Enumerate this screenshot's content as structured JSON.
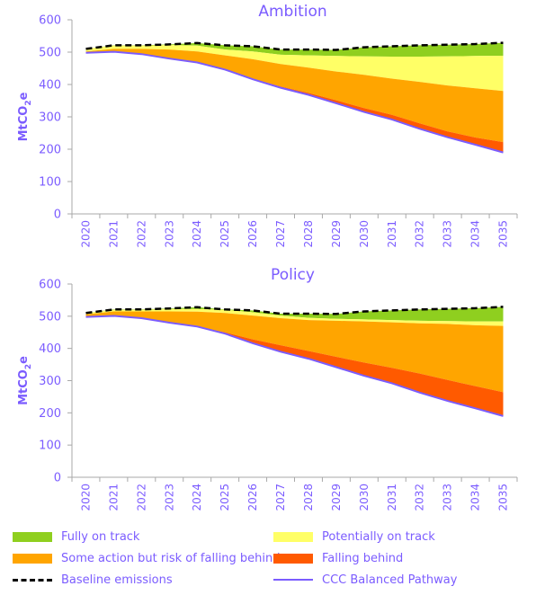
{
  "chart_data": [
    {
      "type": "area",
      "title": "Ambition",
      "ylabel": "MtCO2e",
      "ylim": [
        0,
        600
      ],
      "yticks": [
        0,
        100,
        200,
        300,
        400,
        500,
        600
      ],
      "x": [
        "2020",
        "2021",
        "2022",
        "2023",
        "2024",
        "2025",
        "2026",
        "2027",
        "2028",
        "2029",
        "2030",
        "2031",
        "2032",
        "2033",
        "2034",
        "2035"
      ],
      "baseline": [
        510,
        521,
        521,
        524,
        528,
        521,
        518,
        508,
        508,
        507,
        515,
        518,
        521,
        523,
        525,
        529
      ],
      "pathway": [
        498,
        501,
        494,
        480,
        468,
        446,
        416,
        390,
        368,
        342,
        315,
        292,
        263,
        237,
        214,
        190
      ],
      "boundaries": {
        "fully_on_track_bottom": [
          510,
          520,
          520,
          522,
          520,
          508,
          502,
          492,
          490,
          488,
          487,
          486,
          486,
          487,
          488,
          489
        ],
        "potentially_bottom": [
          502,
          510,
          510,
          508,
          502,
          490,
          478,
          463,
          452,
          440,
          430,
          418,
          408,
          397,
          388,
          380
        ],
        "some_action_bottom": [
          498,
          501,
          494,
          480,
          468,
          446,
          418,
          394,
          374,
          351,
          327,
          306,
          280,
          255,
          236,
          222
        ]
      },
      "series": [
        {
          "name": "Fully on track",
          "color": "#8fcf1f"
        },
        {
          "name": "Potentially on track",
          "color": "#ffff66"
        },
        {
          "name": "Some action but risk of falling behind",
          "color": "#ffa500"
        },
        {
          "name": "Falling behind",
          "color": "#ff5a00"
        }
      ]
    },
    {
      "type": "area",
      "title": "Policy",
      "ylabel": "MtCO2e",
      "ylim": [
        0,
        600
      ],
      "yticks": [
        0,
        100,
        200,
        300,
        400,
        500,
        600
      ],
      "x": [
        "2020",
        "2021",
        "2022",
        "2023",
        "2024",
        "2025",
        "2026",
        "2027",
        "2028",
        "2029",
        "2030",
        "2031",
        "2032",
        "2033",
        "2034",
        "2035"
      ],
      "baseline": [
        510,
        521,
        521,
        524,
        528,
        521,
        518,
        508,
        508,
        507,
        515,
        518,
        521,
        523,
        525,
        529
      ],
      "pathway": [
        498,
        501,
        494,
        480,
        468,
        446,
        416,
        390,
        368,
        342,
        315,
        292,
        263,
        237,
        214,
        190
      ],
      "boundaries": {
        "fully_on_track_bottom": [
          510,
          520,
          520,
          522,
          522,
          520,
          512,
          502,
          495,
          492,
          490,
          488,
          486,
          485,
          484,
          484
        ],
        "potentially_bottom": [
          506,
          515,
          515,
          515,
          514,
          510,
          502,
          494,
          488,
          486,
          484,
          481,
          478,
          476,
          472,
          470
        ],
        "some_action_bottom": [
          498,
          501,
          494,
          480,
          468,
          450,
          428,
          410,
          392,
          374,
          356,
          340,
          322,
          302,
          283,
          264
        ]
      },
      "series": [
        {
          "name": "Fully on track",
          "color": "#8fcf1f"
        },
        {
          "name": "Potentially on track",
          "color": "#ffff66"
        },
        {
          "name": "Some action but risk of falling behind",
          "color": "#ffa500"
        },
        {
          "name": "Falling behind",
          "color": "#ff5a00"
        }
      ]
    }
  ],
  "legend": {
    "fully_on_track": "Fully on track",
    "potentially_on_track": "Potentially on track",
    "some_action": "Some action but risk of falling behind",
    "falling_behind": "Falling behind",
    "baseline": "Baseline emissions",
    "pathway": "CCC Balanced Pathway"
  },
  "colors": {
    "fully": "#8fcf1f",
    "potentially": "#ffff66",
    "some": "#ffa500",
    "falling": "#ff5a00",
    "baseline": "#000000",
    "pathway": "#7b5cff",
    "axis_text": "#7b5cff"
  }
}
